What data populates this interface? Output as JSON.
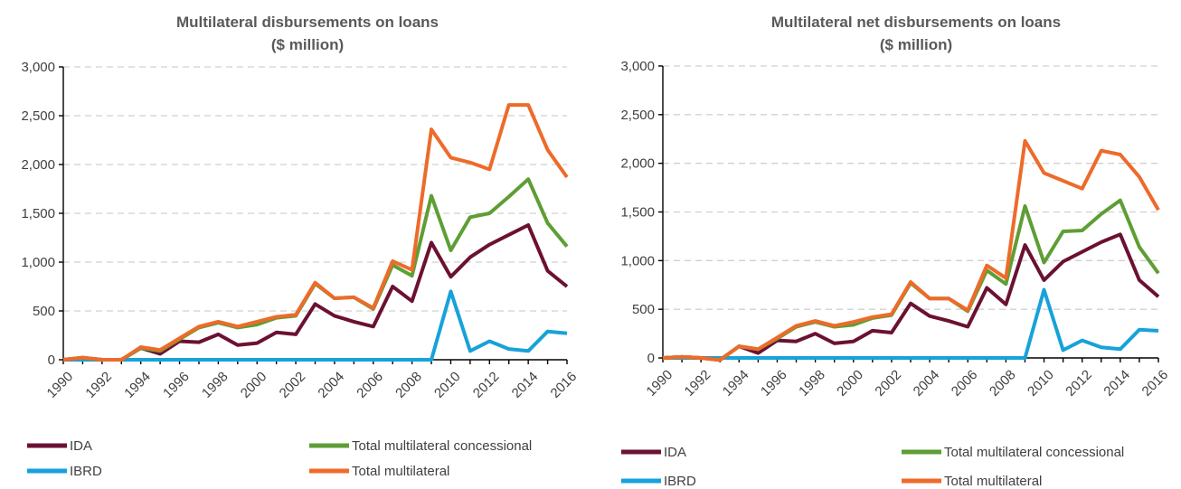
{
  "chart_data": [
    {
      "type": "line",
      "title": [
        "Multilateral  disbursements on loans",
        "($ million)"
      ],
      "xlabel": "",
      "ylabel": "",
      "ylim": [
        0,
        3000
      ],
      "yticks": [
        0,
        500,
        1000,
        1500,
        2000,
        2500,
        3000
      ],
      "ytick_labels": [
        "0",
        "500",
        "1,000",
        "1,500",
        "2,000",
        "2,500",
        "3,000"
      ],
      "xtick_labels": [
        "1990",
        "1992",
        "1994",
        "1996",
        "1998",
        "2000",
        "2002",
        "2004",
        "2006",
        "2008",
        "2010",
        "2012",
        "2014",
        "2016"
      ],
      "grid": true,
      "legend_position": "bottom",
      "x": [
        1990,
        1991,
        1992,
        1993,
        1994,
        1995,
        1996,
        1997,
        1998,
        1999,
        2000,
        2001,
        2002,
        2003,
        2004,
        2005,
        2006,
        2007,
        2008,
        2009,
        2010,
        2011,
        2012,
        2013,
        2014,
        2015,
        2016
      ],
      "series": [
        {
          "name": "Total multilateral",
          "color": "#ED6B2A",
          "values": [
            0,
            20,
            0,
            0,
            130,
            100,
            220,
            340,
            390,
            340,
            390,
            440,
            460,
            790,
            630,
            640,
            530,
            1010,
            920,
            2360,
            2070,
            2020,
            1950,
            2610,
            2610,
            2150,
            1870
          ]
        },
        {
          "name": "Total multilateral concessional",
          "color": "#5E9E34",
          "values": [
            0,
            20,
            0,
            0,
            120,
            90,
            210,
            330,
            380,
            330,
            360,
            430,
            450,
            780,
            630,
            640,
            520,
            970,
            860,
            1680,
            1120,
            1460,
            1500,
            1670,
            1850,
            1400,
            1160
          ]
        },
        {
          "name": "IDA",
          "color": "#6B1133",
          "values": [
            0,
            20,
            0,
            0,
            120,
            60,
            190,
            180,
            260,
            150,
            170,
            280,
            260,
            570,
            450,
            390,
            340,
            750,
            600,
            1200,
            850,
            1050,
            1180,
            1280,
            1380,
            910,
            750
          ]
        },
        {
          "name": "IBRD",
          "color": "#17A2D9",
          "values": [
            0,
            0,
            0,
            0,
            0,
            0,
            0,
            0,
            0,
            0,
            0,
            0,
            0,
            0,
            0,
            0,
            0,
            0,
            0,
            0,
            700,
            90,
            190,
            110,
            90,
            290,
            270
          ]
        }
      ],
      "legend_order": [
        "IDA",
        "Total multilateral concessional",
        "IBRD",
        "Total multilateral"
      ]
    },
    {
      "type": "line",
      "title": [
        "Multilateral  net disbursements on loans",
        "($ million)"
      ],
      "xlabel": "",
      "ylabel": "",
      "ylim": [
        0,
        3000
      ],
      "yticks": [
        0,
        500,
        1000,
        1500,
        2000,
        2500,
        3000
      ],
      "ytick_labels": [
        "0",
        "500",
        "1,000",
        "1,500",
        "2,000",
        "2,500",
        "3,000"
      ],
      "xtick_labels": [
        "1990",
        "1992",
        "1994",
        "1996",
        "1998",
        "2000",
        "2002",
        "2004",
        "2006",
        "2008",
        "2010",
        "2012",
        "2014",
        "2016"
      ],
      "grid": true,
      "legend_position": "bottom",
      "x": [
        1990,
        1991,
        1992,
        1993,
        1994,
        1995,
        1996,
        1997,
        1998,
        1999,
        2000,
        2001,
        2002,
        2003,
        2004,
        2005,
        2006,
        2007,
        2008,
        2009,
        2010,
        2011,
        2012,
        2013,
        2014,
        2015,
        2016
      ],
      "series": [
        {
          "name": "Total multilateral",
          "color": "#ED6B2A",
          "values": [
            0,
            10,
            0,
            -20,
            120,
            90,
            210,
            330,
            380,
            330,
            370,
            420,
            450,
            780,
            610,
            610,
            490,
            950,
            820,
            2230,
            1900,
            1820,
            1740,
            2130,
            2090,
            1860,
            1520
          ]
        },
        {
          "name": "Total multilateral concessional",
          "color": "#5E9E34",
          "values": [
            0,
            10,
            0,
            -20,
            120,
            90,
            200,
            320,
            370,
            320,
            340,
            410,
            440,
            770,
            610,
            610,
            480,
            900,
            760,
            1560,
            980,
            1300,
            1310,
            1480,
            1620,
            1140,
            870
          ]
        },
        {
          "name": "IDA",
          "color": "#6B1133",
          "values": [
            0,
            10,
            0,
            -20,
            120,
            50,
            180,
            170,
            250,
            150,
            170,
            280,
            260,
            560,
            430,
            380,
            320,
            720,
            550,
            1160,
            800,
            990,
            1090,
            1190,
            1270,
            800,
            630
          ]
        },
        {
          "name": "IBRD",
          "color": "#17A2D9",
          "values": [
            0,
            0,
            0,
            0,
            0,
            0,
            0,
            0,
            0,
            0,
            0,
            0,
            0,
            0,
            0,
            0,
            0,
            0,
            0,
            0,
            700,
            80,
            180,
            110,
            90,
            290,
            280
          ]
        }
      ],
      "legend_order": [
        "IDA",
        "Total multilateral concessional",
        "IBRD",
        "Total multilateral"
      ]
    }
  ]
}
